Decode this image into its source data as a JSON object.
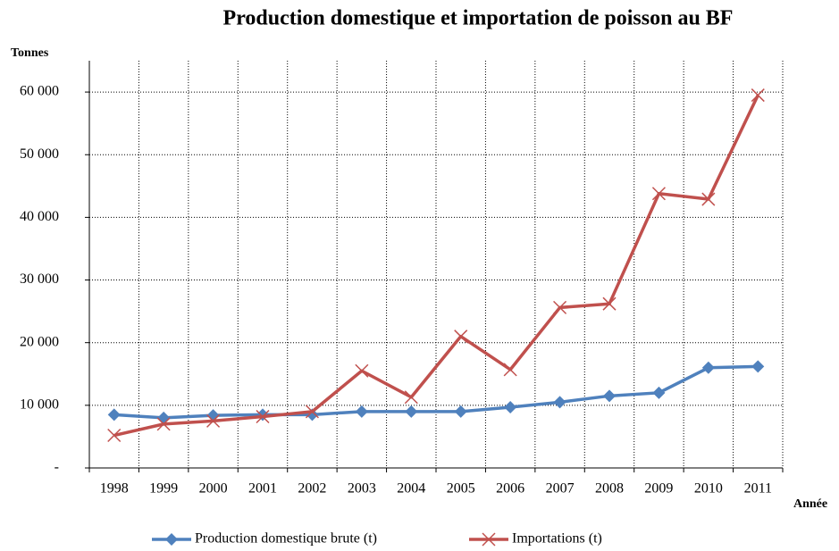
{
  "chart_data": {
    "type": "line",
    "title": "Production domestique et importation de poisson au BF",
    "y_label": "Tonnes",
    "x_label": "Année",
    "categories": [
      "1998",
      "1999",
      "2000",
      "2001",
      "2002",
      "2003",
      "2004",
      "2005",
      "2006",
      "2007",
      "2008",
      "2009",
      "2010",
      "2011"
    ],
    "series": [
      {
        "name": "Production domestique brute (t)",
        "color": "#4f81bd",
        "marker": "diamond",
        "values": [
          8500,
          8000,
          8400,
          8500,
          8500,
          9000,
          9000,
          9000,
          9700,
          10500,
          11500,
          12000,
          16000,
          16200
        ]
      },
      {
        "name": "Importations (t)",
        "color": "#c0504d",
        "marker": "x",
        "values": [
          5200,
          7000,
          7500,
          8200,
          9000,
          15500,
          11300,
          21000,
          15700,
          25600,
          26200,
          43800,
          42900,
          59500
        ]
      }
    ],
    "ylim": [
      0,
      65000
    ],
    "yticks": [
      {
        "value": 0,
        "label": "-"
      },
      {
        "value": 10000,
        "label": "10 000"
      },
      {
        "value": 20000,
        "label": "20 000"
      },
      {
        "value": 30000,
        "label": "30 000"
      },
      {
        "value": 40000,
        "label": "40 000"
      },
      {
        "value": 50000,
        "label": "50 000"
      },
      {
        "value": 60000,
        "label": "60 000"
      }
    ],
    "grid": true,
    "legend": "bottom"
  }
}
